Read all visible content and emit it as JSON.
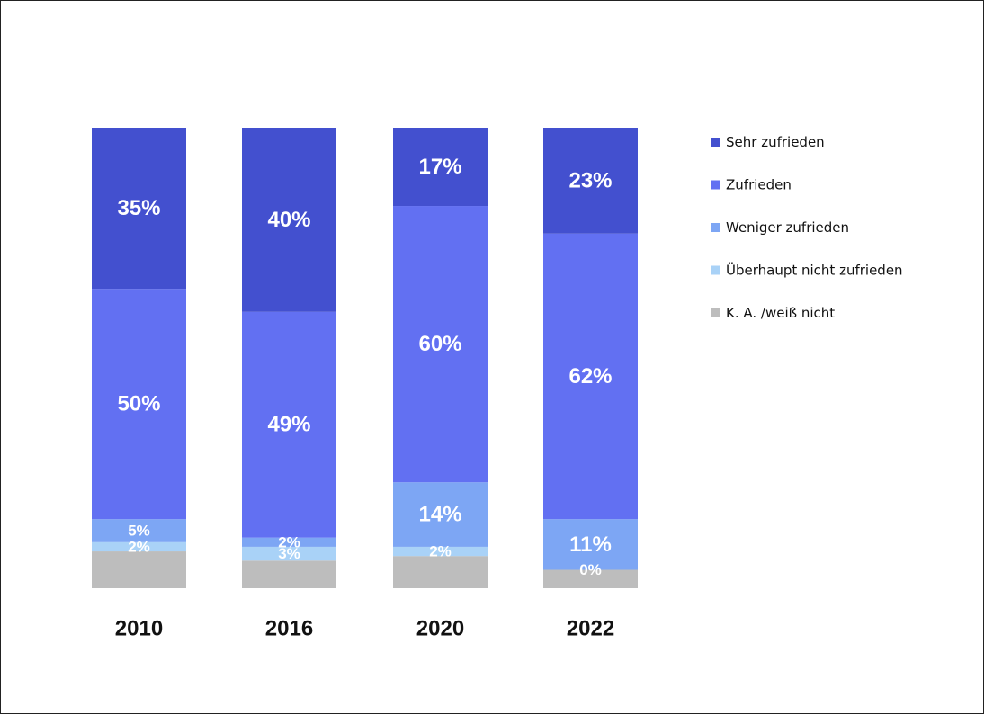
{
  "chart_data": {
    "type": "bar",
    "stacked": true,
    "categories": [
      "2010",
      "2016",
      "2020",
      "2022"
    ],
    "series": [
      {
        "name": "Sehr zufrieden",
        "color": "#4350cf",
        "values": [
          35,
          40,
          17,
          23
        ],
        "labels": [
          "35%",
          "40%",
          "17%",
          "23%"
        ]
      },
      {
        "name": "Zufrieden",
        "color": "#6270f2",
        "values": [
          50,
          49,
          60,
          62
        ],
        "labels": [
          "50%",
          "49%",
          "60%",
          "62%"
        ]
      },
      {
        "name": "Weniger zufrieden",
        "color": "#7da6f4",
        "values": [
          5,
          2,
          14,
          11
        ],
        "labels": [
          "5%",
          "2%",
          "14%",
          "11%"
        ]
      },
      {
        "name": "Überhaupt nicht zufrieden",
        "color": "#a9d2f7",
        "values": [
          2,
          3,
          2,
          0
        ],
        "labels": [
          "2%",
          "3%",
          "2%",
          "0%"
        ]
      },
      {
        "name": "K. A. /weiß nicht",
        "color": "#bdbdbd",
        "values": [
          8,
          6,
          7,
          4
        ],
        "labels": [
          "",
          "",
          "",
          ""
        ]
      }
    ],
    "legend_position": "right",
    "grid": false,
    "ylim": [
      0,
      100
    ]
  }
}
